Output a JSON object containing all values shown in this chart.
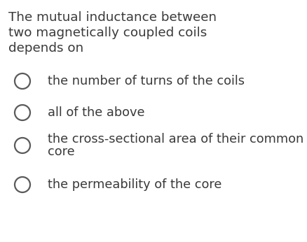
{
  "background_color": "#ffffff",
  "question_lines": [
    "The mutual inductance between",
    "two magnetically coupled coils",
    "depends on"
  ],
  "options": [
    {
      "lines": [
        "the number of turns of the coils"
      ]
    },
    {
      "lines": [
        "all of the above"
      ]
    },
    {
      "lines": [
        "the cross-sectional area of their common",
        "core"
      ]
    },
    {
      "lines": [
        "the permeability of the core"
      ]
    }
  ],
  "text_color": "#3a3a3a",
  "circle_color": "#5a5a5a",
  "question_fontsize": 13.2,
  "option_fontsize": 12.8,
  "circle_linewidth": 1.6
}
